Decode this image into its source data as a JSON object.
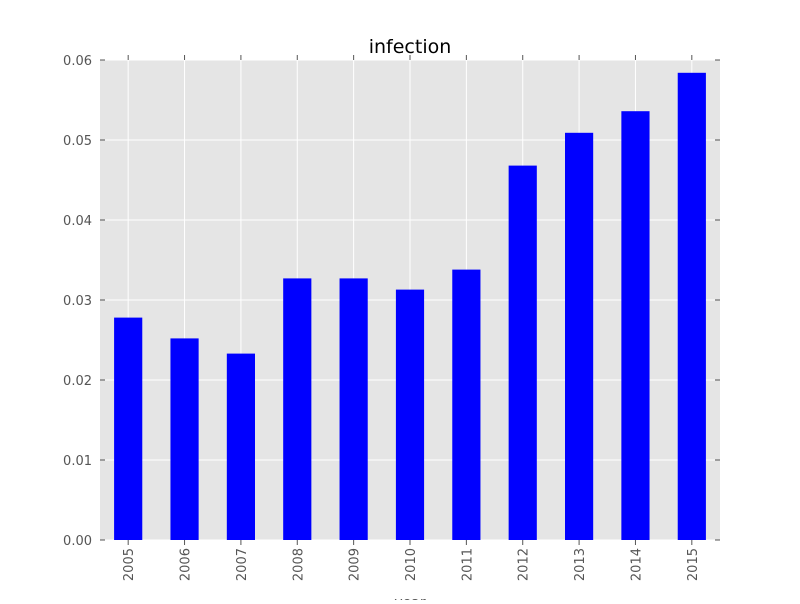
{
  "chart_data": {
    "type": "bar",
    "title": "infection",
    "xlabel": "year",
    "ylabel": "",
    "categories": [
      "2005",
      "2006",
      "2007",
      "2008",
      "2009",
      "2010",
      "2011",
      "2012",
      "2013",
      "2014",
      "2015"
    ],
    "values": [
      0.0278,
      0.0252,
      0.0233,
      0.0327,
      0.0327,
      0.0313,
      0.0338,
      0.0468,
      0.0509,
      0.0536,
      0.0584
    ],
    "ylim": [
      0,
      0.06
    ],
    "yticks": [
      "0.00",
      "0.01",
      "0.02",
      "0.03",
      "0.04",
      "0.05",
      "0.06"
    ],
    "grid": true,
    "legend": "none",
    "colors": {
      "bar": "#0000ff",
      "background": "#e5e5e5",
      "grid": "#ffffff"
    }
  }
}
